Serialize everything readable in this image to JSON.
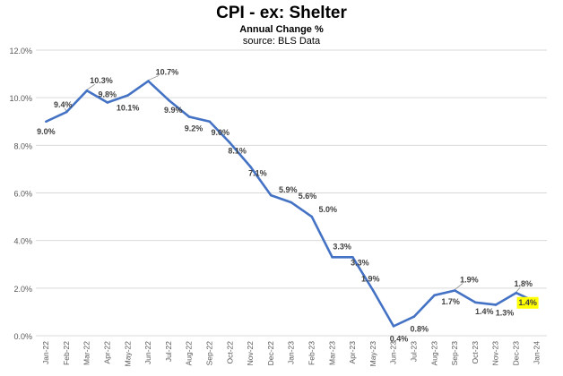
{
  "chart_data": {
    "type": "line",
    "title": "CPI - ex: Shelter",
    "subtitle": "Annual Change %",
    "source": "source: BLS Data",
    "categories": [
      "Jan-22",
      "Feb-22",
      "Mar-22",
      "Apr-22",
      "May-22",
      "Jun-22",
      "Jul-22",
      "Aug-22",
      "Sep-22",
      "Oct-22",
      "Nov-22",
      "Dec-22",
      "Jan-23",
      "Feb-23",
      "Mar-23",
      "Apr-23",
      "May-23",
      "Jun-23",
      "Jul-23",
      "Aug-23",
      "Sep-23",
      "Oct-23",
      "Nov-23",
      "Dec-23",
      "Jan-24"
    ],
    "series": [
      {
        "values": [
          9.0,
          9.4,
          10.3,
          9.8,
          10.1,
          10.7,
          9.9,
          9.2,
          9.0,
          8.1,
          7.1,
          5.9,
          5.6,
          5.0,
          3.3,
          3.3,
          1.9,
          0.4,
          0.8,
          1.7,
          1.9,
          1.4,
          1.3,
          1.8,
          1.4
        ],
        "labels": [
          "9.0%",
          "9.4%",
          "10.3%",
          "9.8%",
          "10.1%",
          "10.7%",
          "9.9%",
          "9.2%",
          "9.0%",
          "8.1%",
          "7.1%",
          "5.9%",
          "5.6%",
          "5.0%",
          "3.3%",
          "3.3%",
          "1.9%",
          "0.4%",
          "0.8%",
          "1.7%",
          "1.9%",
          "1.4%",
          "1.3%",
          "1.8%",
          "1.4%"
        ],
        "color": "#4472C4"
      }
    ],
    "yticks": [
      "0.0%",
      "2.0%",
      "4.0%",
      "6.0%",
      "8.0%",
      "10.0%",
      "12.0%"
    ],
    "ylim": [
      0,
      12
    ],
    "grid": true,
    "highlight_color": "#FFFF00"
  }
}
